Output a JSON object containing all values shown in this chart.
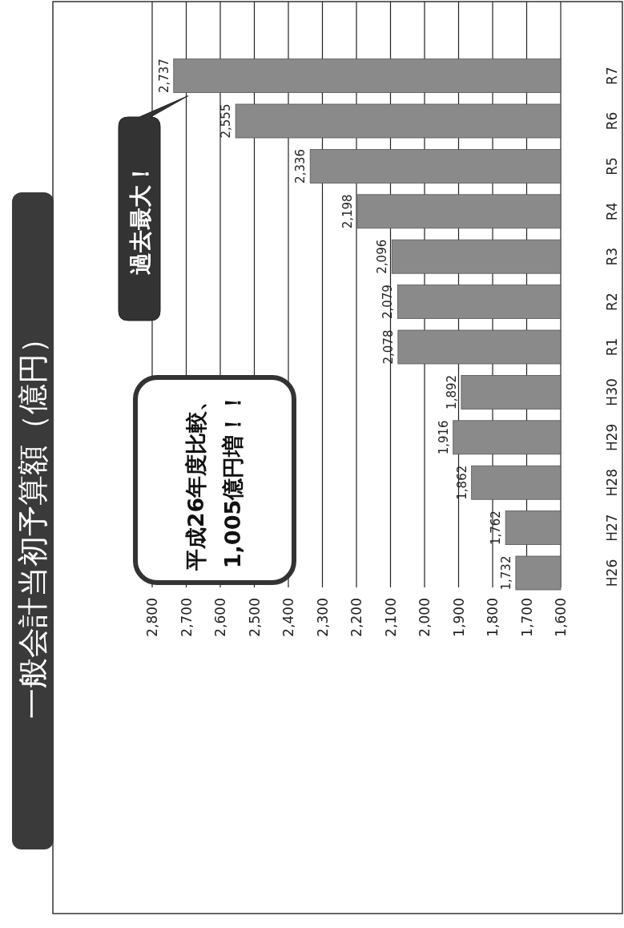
{
  "chart_data": {
    "type": "bar",
    "orientation": "horizontal",
    "title": "一般会計当初予算額（億円）",
    "categories": [
      "R7",
      "R6",
      "R5",
      "R4",
      "R3",
      "R2",
      "R1",
      "H30",
      "H29",
      "H28",
      "H27",
      "H26"
    ],
    "values": [
      2737,
      2555,
      2336,
      2198,
      2096,
      2079,
      2078,
      1892,
      1916,
      1862,
      1762,
      1732
    ],
    "color": "#8a8a8a",
    "value_labels": [
      "2,737",
      "2,555",
      "2,336",
      "2,198",
      "2,096",
      "2,079",
      "2,078",
      "1,892",
      "1,916",
      "1,862",
      "1,762",
      "1,732"
    ],
    "xlim": [
      2800,
      1600
    ],
    "xticks": [
      {
        "value": 2800,
        "label": "2,800"
      },
      {
        "value": 2700,
        "label": "2,700"
      },
      {
        "value": 2600,
        "label": "2,600"
      },
      {
        "value": 2500,
        "label": "2,500"
      },
      {
        "value": 2400,
        "label": "2,400"
      },
      {
        "value": 2300,
        "label": "2,300"
      },
      {
        "value": 2200,
        "label": "2,200"
      },
      {
        "value": 2100,
        "label": "2,100"
      },
      {
        "value": 2000,
        "label": "2,000"
      },
      {
        "value": 1900,
        "label": "1,900"
      },
      {
        "value": 1800,
        "label": "1,800"
      },
      {
        "value": 1700,
        "label": "1,700"
      },
      {
        "value": 1600,
        "label": "1,600"
      }
    ],
    "grid": "x",
    "annotations": [
      "平成26年度比較、",
      "1,005億円増！！",
      {
        "text": "過去最大！"
      }
    ]
  }
}
